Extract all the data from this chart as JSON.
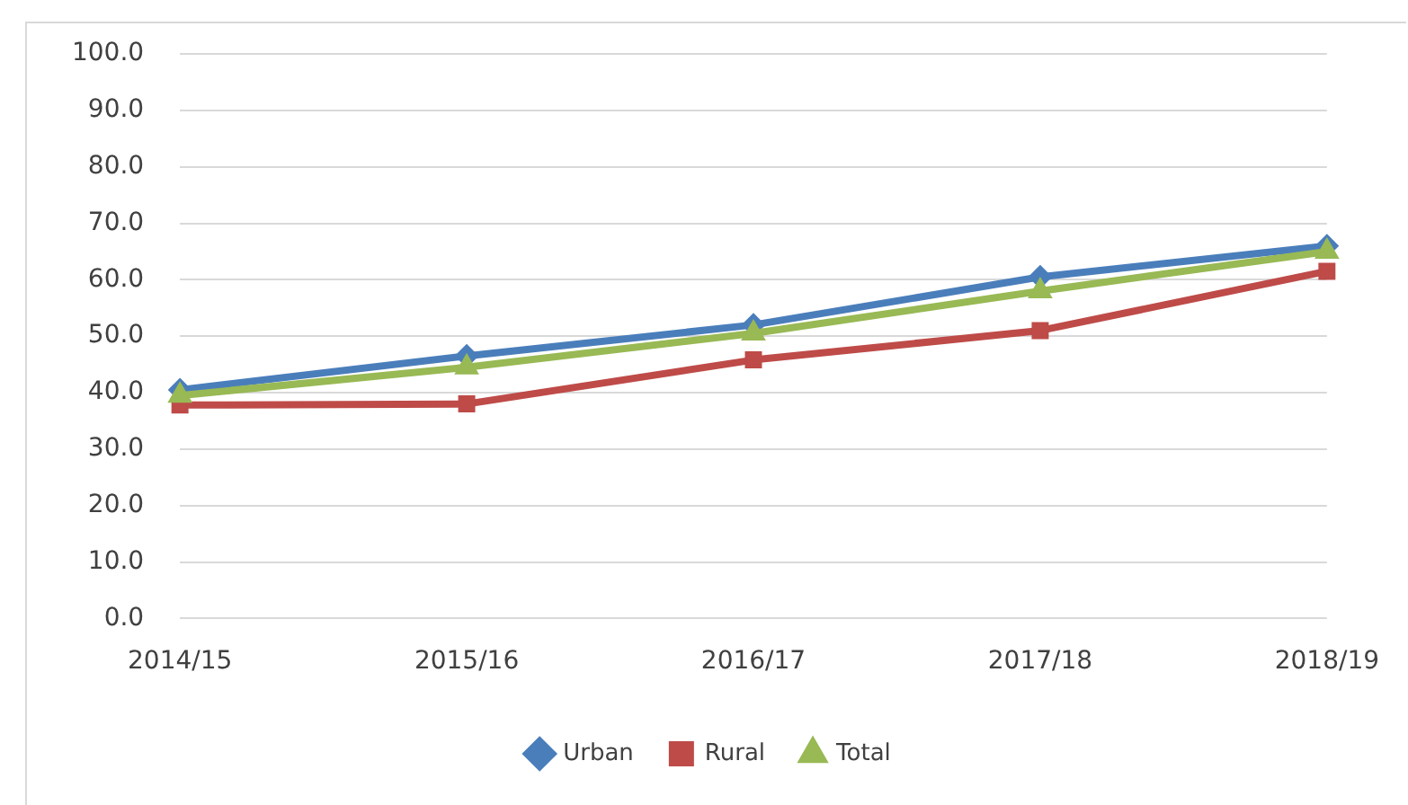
{
  "chart_data": {
    "type": "line",
    "categories": [
      "2014/15",
      "2015/16",
      "2016/17",
      "2017/18",
      "2018/19"
    ],
    "series": [
      {
        "name": "Urban",
        "color": "#4a7ebb",
        "marker": "diamond",
        "values": [
          40.5,
          46.5,
          52.0,
          60.5,
          66.0
        ]
      },
      {
        "name": "Rural",
        "color": "#be4b48",
        "marker": "square",
        "values": [
          37.8,
          38.0,
          45.8,
          51.0,
          61.5
        ]
      },
      {
        "name": "Total",
        "color": "#98b954",
        "marker": "triangle",
        "values": [
          39.5,
          44.5,
          50.5,
          58.0,
          65.0
        ]
      }
    ],
    "ylim": [
      0,
      100
    ],
    "yticks": [
      {
        "value": 0,
        "label": "0.0"
      },
      {
        "value": 10,
        "label": "10.0"
      },
      {
        "value": 20,
        "label": "20.0"
      },
      {
        "value": 30,
        "label": "30.0"
      },
      {
        "value": 40,
        "label": "40.0"
      },
      {
        "value": 50,
        "label": "50.0"
      },
      {
        "value": 60,
        "label": "60.0"
      },
      {
        "value": 70,
        "label": "70.0"
      },
      {
        "value": 80,
        "label": "80.0"
      },
      {
        "value": 90,
        "label": "90.0"
      },
      {
        "value": 100,
        "label": "100.0"
      }
    ],
    "grid": "y",
    "legend": "bottom"
  }
}
